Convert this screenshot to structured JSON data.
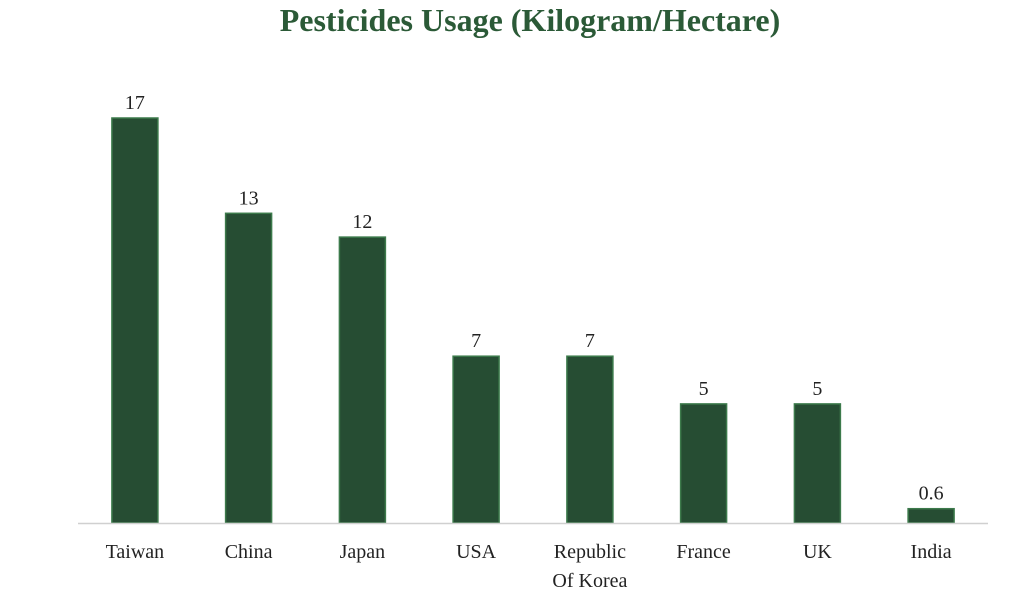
{
  "chart_data": {
    "type": "bar",
    "title": "Pesticides Usage (Kilogram/Hectare)",
    "categories": [
      "Taiwan",
      "China",
      "Japan",
      "USA",
      "Republic Of Korea",
      "France",
      "UK",
      "India"
    ],
    "category_lines": [
      [
        "Taiwan"
      ],
      [
        "China"
      ],
      [
        "Japan"
      ],
      [
        "USA"
      ],
      [
        "Republic",
        "Of Korea"
      ],
      [
        "France"
      ],
      [
        "UK"
      ],
      [
        "India"
      ]
    ],
    "values": [
      17,
      13,
      12,
      7,
      7,
      5,
      5,
      0.6
    ],
    "value_labels": [
      "17",
      "13",
      "12",
      "7",
      "7",
      "5",
      "5",
      "0.6"
    ],
    "xlabel": "",
    "ylabel": "",
    "ylim": [
      0,
      17
    ],
    "grid": false,
    "data_labels": true,
    "bar_color": "#264d33",
    "bar_edge_color": "#3c7a4b",
    "title_color": "#2b5a37",
    "axis_color": "#d0d0d0"
  }
}
